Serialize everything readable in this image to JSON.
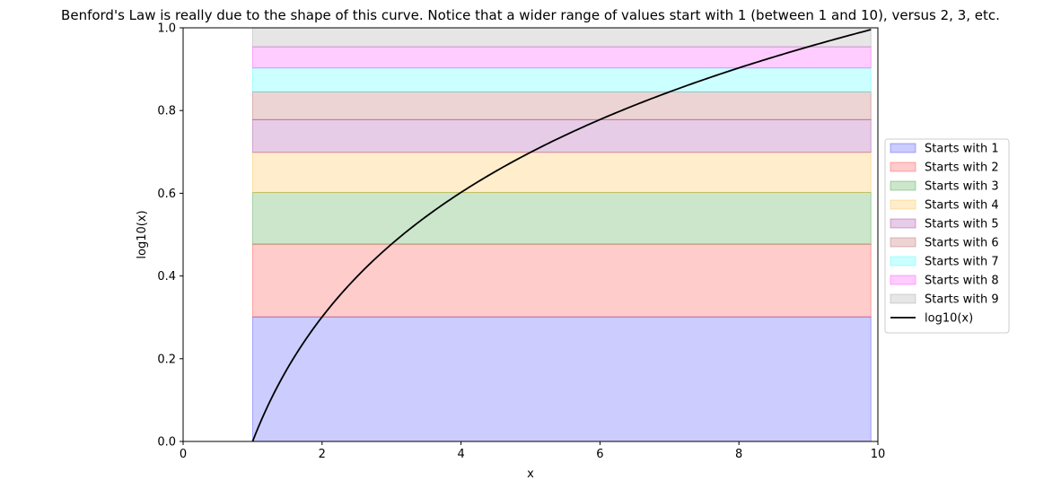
{
  "chart_data": {
    "type": "area",
    "title": "Benford's Law is really due to the shape of this curve. Notice that a wider range of values start with 1 (between 1 and 10), versus 2, 3, etc.",
    "xlabel": "x",
    "ylabel": "log10(x)",
    "xlim": [
      0,
      10
    ],
    "ylim": [
      0,
      1.0
    ],
    "x_ticks": [
      "0",
      "2",
      "4",
      "6",
      "8",
      "10"
    ],
    "y_ticks": [
      "0.0",
      "0.2",
      "0.4",
      "0.6",
      "0.8",
      "1.0"
    ],
    "grid": false,
    "legend_position": "center-right outside",
    "bands": [
      {
        "name": "Starts with 1",
        "y0": 0.0,
        "y1": 0.301,
        "x0": 1,
        "x1": 9.9,
        "color": "#0000ff"
      },
      {
        "name": "Starts with 2",
        "y0": 0.301,
        "y1": 0.477,
        "x0": 1,
        "x1": 9.9,
        "color": "#ff0000"
      },
      {
        "name": "Starts with 3",
        "y0": 0.477,
        "y1": 0.602,
        "x0": 1,
        "x1": 9.9,
        "color": "#008000"
      },
      {
        "name": "Starts with 4",
        "y0": 0.602,
        "y1": 0.699,
        "x0": 1,
        "x1": 9.9,
        "color": "#ffa500"
      },
      {
        "name": "Starts with 5",
        "y0": 0.699,
        "y1": 0.778,
        "x0": 1,
        "x1": 9.9,
        "color": "#800080"
      },
      {
        "name": "Starts with 6",
        "y0": 0.778,
        "y1": 0.845,
        "x0": 1,
        "x1": 9.9,
        "color": "#a52a2a"
      },
      {
        "name": "Starts with 7",
        "y0": 0.845,
        "y1": 0.903,
        "x0": 1,
        "x1": 9.9,
        "color": "#00ffff"
      },
      {
        "name": "Starts with 8",
        "y0": 0.903,
        "y1": 0.954,
        "x0": 1,
        "x1": 9.9,
        "color": "#ff00ff"
      },
      {
        "name": "Starts with 9",
        "y0": 0.954,
        "y1": 1.0,
        "x0": 1,
        "x1": 9.9,
        "color": "#808080"
      }
    ],
    "band_alpha": 0.2,
    "series": [
      {
        "name": "log10(x)",
        "function": "log10",
        "x_start": 1,
        "x_end": 9.9,
        "color": "#000000"
      }
    ]
  }
}
